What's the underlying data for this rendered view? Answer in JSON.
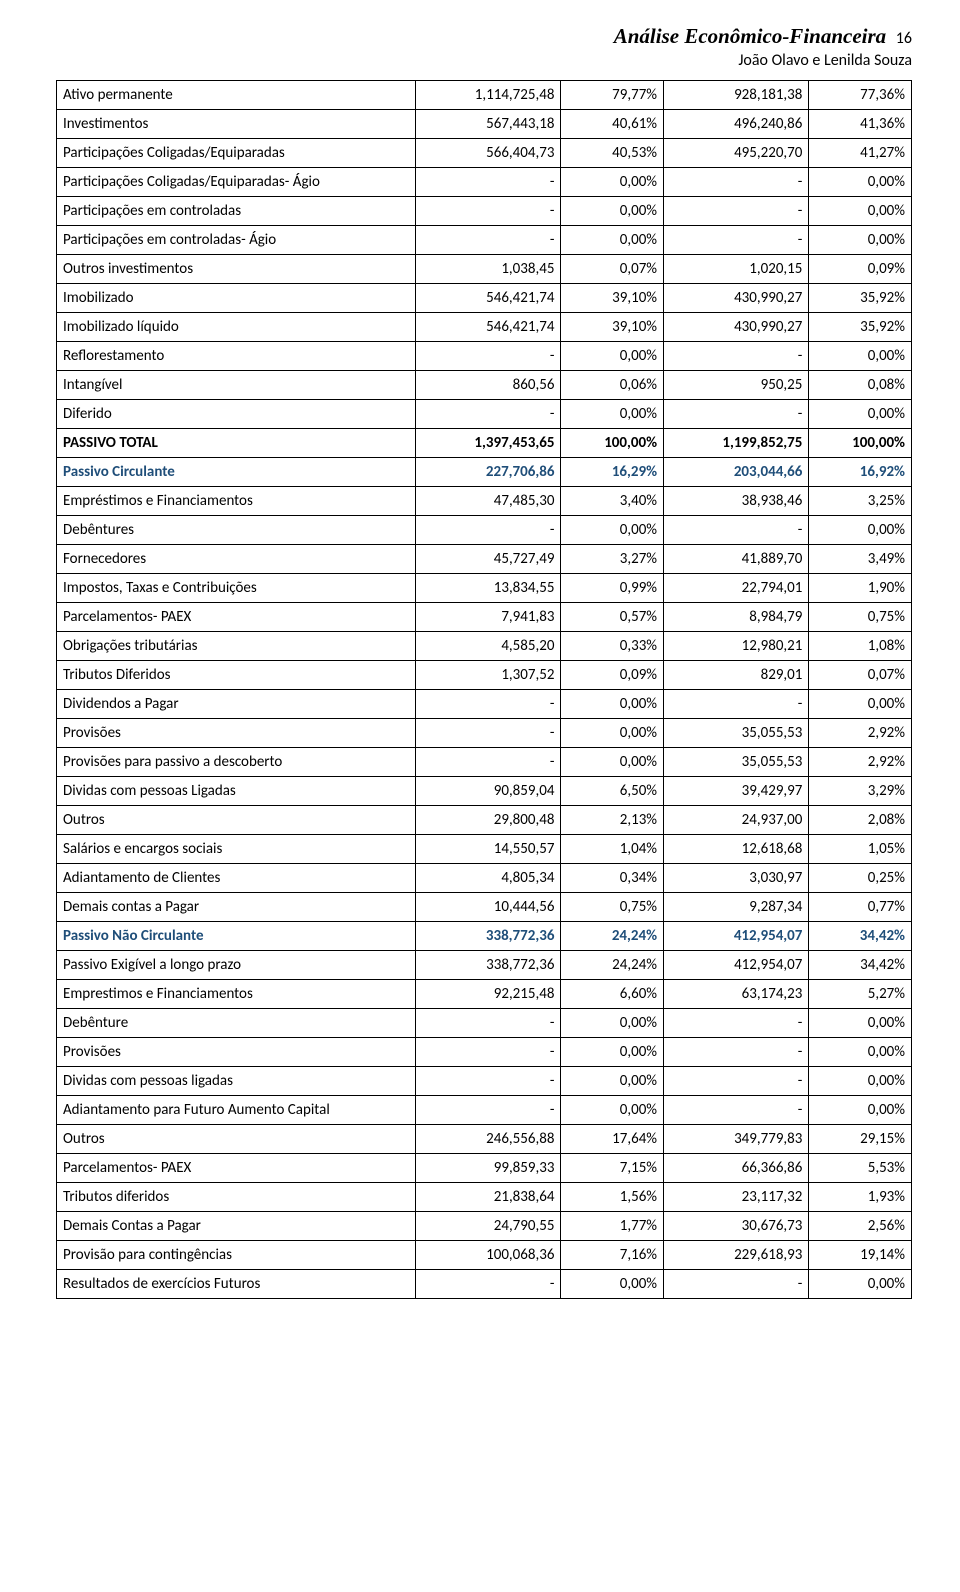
{
  "header": {
    "title": "Análise Econômico-Financeira",
    "page_num": "16",
    "subtitle": "João Olavo e Lenilda Souza"
  },
  "table": {
    "col_widths": [
      "42%",
      "17%",
      "12%",
      "17%",
      "12%"
    ],
    "rows": [
      {
        "label": "Ativo permanente",
        "v1": "1,114,725,48",
        "p1": "79,77%",
        "v2": "928,181,38",
        "p2": "77,36%",
        "style": "normal"
      },
      {
        "label": "Investimentos",
        "v1": "567,443,18",
        "p1": "40,61%",
        "v2": "496,240,86",
        "p2": "41,36%",
        "style": "normal"
      },
      {
        "label": "Participações Coligadas/Equiparadas",
        "v1": "566,404,73",
        "p1": "40,53%",
        "v2": "495,220,70",
        "p2": "41,27%",
        "style": "normal"
      },
      {
        "label": "Participações Coligadas/Equiparadas- Ágio",
        "v1": "-",
        "p1": "0,00%",
        "v2": "-",
        "p2": "0,00%",
        "style": "normal"
      },
      {
        "label": "Participações em controladas",
        "v1": "-",
        "p1": "0,00%",
        "v2": "-",
        "p2": "0,00%",
        "style": "normal"
      },
      {
        "label": "Participações em controladas- Ágio",
        "v1": "-",
        "p1": "0,00%",
        "v2": "-",
        "p2": "0,00%",
        "style": "normal"
      },
      {
        "label": "Outros investimentos",
        "v1": "1,038,45",
        "p1": "0,07%",
        "v2": "1,020,15",
        "p2": "0,09%",
        "style": "normal"
      },
      {
        "label": "Imobilizado",
        "v1": "546,421,74",
        "p1": "39,10%",
        "v2": "430,990,27",
        "p2": "35,92%",
        "style": "normal"
      },
      {
        "label": "Imobilizado líquido",
        "v1": "546,421,74",
        "p1": "39,10%",
        "v2": "430,990,27",
        "p2": "35,92%",
        "style": "normal"
      },
      {
        "label": "Reflorestamento",
        "v1": "-",
        "p1": "0,00%",
        "v2": "-",
        "p2": "0,00%",
        "style": "normal"
      },
      {
        "label": "Intangível",
        "v1": "860,56",
        "p1": "0,06%",
        "v2": "950,25",
        "p2": "0,08%",
        "style": "normal"
      },
      {
        "label": "Diferido",
        "v1": "-",
        "p1": "0,00%",
        "v2": "-",
        "p2": "0,00%",
        "style": "normal"
      },
      {
        "label": "PASSIVO TOTAL",
        "v1": "1,397,453,65",
        "p1": "100,00%",
        "v2": "1,199,852,75",
        "p2": "100,00%",
        "style": "bold"
      },
      {
        "label": "Passivo Circulante",
        "v1": "227,706,86",
        "p1": "16,29%",
        "v2": "203,044,66",
        "p2": "16,92%",
        "style": "blue"
      },
      {
        "label": "Empréstimos e Financiamentos",
        "v1": "47,485,30",
        "p1": "3,40%",
        "v2": "38,938,46",
        "p2": "3,25%",
        "style": "normal"
      },
      {
        "label": "Debêntures",
        "v1": "-",
        "p1": "0,00%",
        "v2": "-",
        "p2": "0,00%",
        "style": "normal"
      },
      {
        "label": "Fornecedores",
        "v1": "45,727,49",
        "p1": "3,27%",
        "v2": "41,889,70",
        "p2": "3,49%",
        "style": "normal"
      },
      {
        "label": "Impostos, Taxas e Contribuições",
        "v1": "13,834,55",
        "p1": "0,99%",
        "v2": "22,794,01",
        "p2": "1,90%",
        "style": "normal"
      },
      {
        "label": "Parcelamentos- PAEX",
        "v1": "7,941,83",
        "p1": "0,57%",
        "v2": "8,984,79",
        "p2": "0,75%",
        "style": "normal"
      },
      {
        "label": "Obrigações tributárias",
        "v1": "4,585,20",
        "p1": "0,33%",
        "v2": "12,980,21",
        "p2": "1,08%",
        "style": "normal"
      },
      {
        "label": "Tributos Diferidos",
        "v1": "1,307,52",
        "p1": "0,09%",
        "v2": "829,01",
        "p2": "0,07%",
        "style": "normal"
      },
      {
        "label": "Dividendos a Pagar",
        "v1": "-",
        "p1": "0,00%",
        "v2": "-",
        "p2": "0,00%",
        "style": "normal"
      },
      {
        "label": "Provisões",
        "v1": "-",
        "p1": "0,00%",
        "v2": "35,055,53",
        "p2": "2,92%",
        "style": "normal"
      },
      {
        "label": "Provisões para passivo a descoberto",
        "v1": "-",
        "p1": "0,00%",
        "v2": "35,055,53",
        "p2": "2,92%",
        "style": "normal"
      },
      {
        "label": "Dividas com pessoas Ligadas",
        "v1": "90,859,04",
        "p1": "6,50%",
        "v2": "39,429,97",
        "p2": "3,29%",
        "style": "normal"
      },
      {
        "label": "Outros",
        "v1": "29,800,48",
        "p1": "2,13%",
        "v2": "24,937,00",
        "p2": "2,08%",
        "style": "normal"
      },
      {
        "label": "Salários e encargos sociais",
        "v1": "14,550,57",
        "p1": "1,04%",
        "v2": "12,618,68",
        "p2": "1,05%",
        "style": "normal"
      },
      {
        "label": "Adiantamento de Clientes",
        "v1": "4,805,34",
        "p1": "0,34%",
        "v2": "3,030,97",
        "p2": "0,25%",
        "style": "normal"
      },
      {
        "label": "Demais contas a Pagar",
        "v1": "10,444,56",
        "p1": "0,75%",
        "v2": "9,287,34",
        "p2": "0,77%",
        "style": "normal"
      },
      {
        "label": "Passivo Não Circulante",
        "v1": "338,772,36",
        "p1": "24,24%",
        "v2": "412,954,07",
        "p2": "34,42%",
        "style": "blue"
      },
      {
        "label": "Passivo Exigível a longo prazo",
        "v1": "338,772,36",
        "p1": "24,24%",
        "v2": "412,954,07",
        "p2": "34,42%",
        "style": "normal"
      },
      {
        "label": "Emprestimos e Financiamentos",
        "v1": "92,215,48",
        "p1": "6,60%",
        "v2": "63,174,23",
        "p2": "5,27%",
        "style": "normal"
      },
      {
        "label": "Debênture",
        "v1": "-",
        "p1": "0,00%",
        "v2": "-",
        "p2": "0,00%",
        "style": "normal"
      },
      {
        "label": "Provisões",
        "v1": "-",
        "p1": "0,00%",
        "v2": "-",
        "p2": "0,00%",
        "style": "normal"
      },
      {
        "label": "Dividas com pessoas ligadas",
        "v1": "-",
        "p1": "0,00%",
        "v2": "-",
        "p2": "0,00%",
        "style": "normal"
      },
      {
        "label": "Adiantamento para Futuro Aumento Capital",
        "v1": "-",
        "p1": "0,00%",
        "v2": "-",
        "p2": "0,00%",
        "style": "normal"
      },
      {
        "label": "Outros",
        "v1": "246,556,88",
        "p1": "17,64%",
        "v2": "349,779,83",
        "p2": "29,15%",
        "style": "normal"
      },
      {
        "label": "Parcelamentos- PAEX",
        "v1": "99,859,33",
        "p1": "7,15%",
        "v2": "66,366,86",
        "p2": "5,53%",
        "style": "normal"
      },
      {
        "label": "Tributos diferidos",
        "v1": "21,838,64",
        "p1": "1,56%",
        "v2": "23,117,32",
        "p2": "1,93%",
        "style": "normal"
      },
      {
        "label": "Demais Contas a Pagar",
        "v1": "24,790,55",
        "p1": "1,77%",
        "v2": "30,676,73",
        "p2": "2,56%",
        "style": "normal"
      },
      {
        "label": "Provisão para contingências",
        "v1": "100,068,36",
        "p1": "7,16%",
        "v2": "229,618,93",
        "p2": "19,14%",
        "style": "normal"
      },
      {
        "label": "Resultados de exercícios Futuros",
        "v1": "-",
        "p1": "0,00%",
        "v2": "-",
        "p2": "0,00%",
        "style": "normal"
      }
    ]
  }
}
